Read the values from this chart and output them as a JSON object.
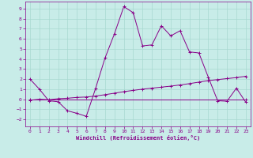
{
  "xlabel": "Windchill (Refroidissement éolien,°C)",
  "background_color": "#c8ece8",
  "grid_color": "#a8d8d0",
  "line_color": "#880088",
  "spine_color": "#880088",
  "tick_color": "#880088",
  "xlim": [
    -0.5,
    23.5
  ],
  "ylim": [
    -2.7,
    9.7
  ],
  "xticks": [
    0,
    1,
    2,
    3,
    4,
    5,
    6,
    7,
    8,
    9,
    10,
    11,
    12,
    13,
    14,
    15,
    16,
    17,
    18,
    19,
    20,
    21,
    22,
    23
  ],
  "yticks": [
    -2,
    -1,
    0,
    1,
    2,
    3,
    4,
    5,
    6,
    7,
    8,
    9
  ],
  "line1_x": [
    0,
    1,
    2,
    3,
    4,
    5,
    6,
    7,
    8,
    9,
    10,
    11,
    12,
    13,
    14,
    15,
    16,
    17,
    18,
    19,
    20,
    21,
    22,
    23
  ],
  "line1_y": [
    2.0,
    1.0,
    -0.15,
    -0.25,
    -1.15,
    -1.4,
    -1.7,
    1.1,
    4.1,
    6.5,
    9.2,
    8.6,
    5.3,
    5.4,
    7.3,
    6.3,
    6.8,
    4.7,
    4.6,
    2.2,
    -0.15,
    -0.2,
    1.1,
    -0.3
  ],
  "line2_x": [
    0,
    1,
    2,
    3,
    4,
    5,
    6,
    7,
    8,
    9,
    10,
    11,
    12,
    13,
    14,
    15,
    16,
    17,
    18,
    19,
    20,
    21,
    22,
    23
  ],
  "line2_y": [
    -0.1,
    0.0,
    -0.05,
    0.05,
    0.1,
    0.18,
    0.22,
    0.32,
    0.45,
    0.6,
    0.75,
    0.88,
    1.0,
    1.1,
    1.2,
    1.3,
    1.42,
    1.55,
    1.7,
    1.85,
    1.95,
    2.05,
    2.15,
    2.28
  ],
  "line3_x": [
    0,
    23
  ],
  "line3_y": [
    -0.05,
    -0.05
  ]
}
